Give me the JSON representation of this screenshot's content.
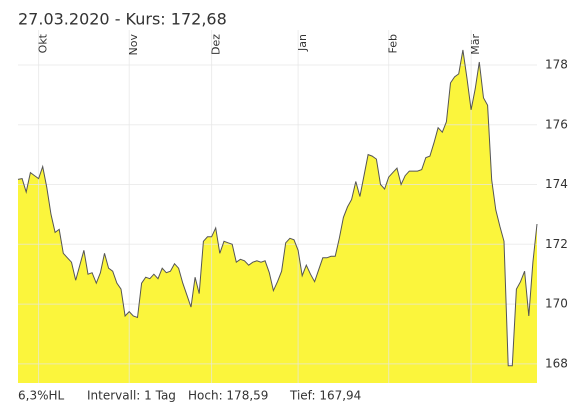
{
  "chart_data": {
    "type": "area",
    "title": "27.03.2020  -  Kurs: 172,68",
    "values": [
      174.17,
      174.2,
      173.75,
      174.4,
      174.3,
      174.2,
      174.6,
      173.9,
      173.0,
      172.4,
      172.5,
      171.7,
      171.55,
      171.4,
      170.8,
      171.3,
      171.8,
      171.0,
      171.05,
      170.7,
      171.05,
      171.7,
      171.2,
      171.1,
      170.7,
      170.5,
      169.6,
      169.75,
      169.6,
      169.55,
      170.7,
      170.9,
      170.85,
      171.0,
      170.85,
      171.2,
      171.05,
      171.1,
      171.35,
      171.2,
      170.7,
      170.3,
      169.9,
      170.9,
      170.35,
      172.1,
      172.25,
      172.25,
      172.55,
      171.7,
      172.1,
      172.05,
      172.0,
      171.4,
      171.5,
      171.45,
      171.3,
      171.4,
      171.45,
      171.4,
      171.45,
      171.05,
      170.45,
      170.75,
      171.1,
      172.05,
      172.2,
      172.15,
      171.8,
      170.95,
      171.3,
      171.0,
      170.75,
      171.15,
      171.55,
      171.55,
      171.6,
      171.6,
      172.2,
      172.9,
      173.25,
      173.5,
      174.1,
      173.6,
      174.3,
      175.0,
      174.95,
      174.85,
      174.0,
      173.85,
      174.25,
      174.4,
      174.55,
      174.0,
      174.3,
      174.45,
      174.45,
      174.45,
      174.5,
      174.9,
      174.95,
      175.4,
      175.9,
      175.75,
      176.1,
      177.4,
      177.6,
      177.7,
      178.5,
      177.55,
      176.5,
      177.2,
      178.1,
      176.9,
      176.65,
      174.15,
      173.15,
      172.6,
      172.1,
      167.94,
      167.94,
      170.5,
      170.75,
      171.1,
      169.6,
      171.4,
      172.68
    ],
    "color": "#fbf53c",
    "line_color": "#555555",
    "xlim": [
      0,
      126
    ],
    "xticks": [
      {
        "value": 5,
        "label": "Okt"
      },
      {
        "value": 27,
        "label": "Nov"
      },
      {
        "value": 47,
        "label": "Dez"
      },
      {
        "value": 68,
        "label": "Jan"
      },
      {
        "value": 90,
        "label": "Feb"
      },
      {
        "value": 110,
        "label": "Mär"
      }
    ],
    "ylim": [
      167.36,
      179.17
    ],
    "yticks": [
      168,
      170,
      172,
      174,
      176,
      178
    ],
    "grid": true,
    "footer": [
      "6,3%HL",
      "Intervall: 1 Tag",
      "Hoch: 178,59",
      "Tief: 167,94"
    ]
  }
}
